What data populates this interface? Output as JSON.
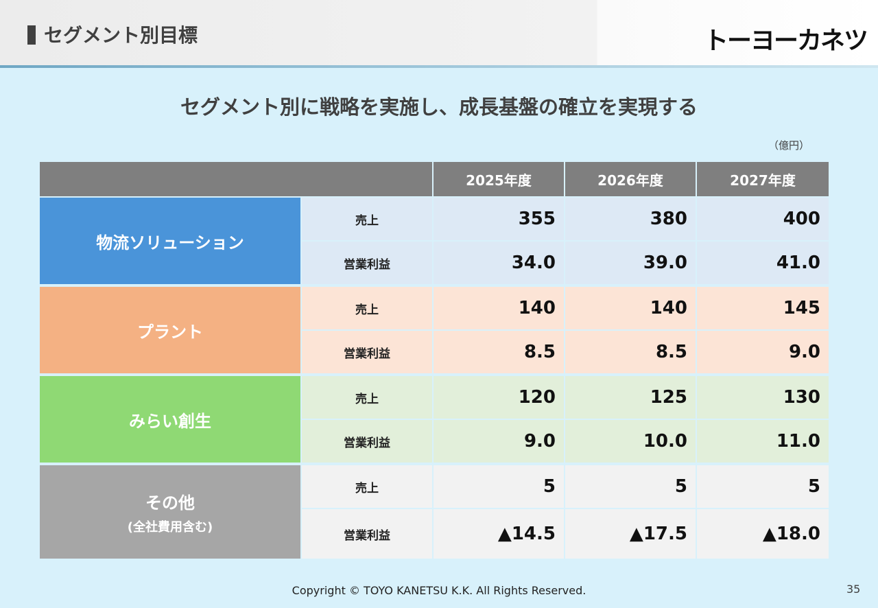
{
  "header": {
    "title": "セグメント別目標",
    "logo": "トーヨーカネツ"
  },
  "subtitle": "セグメント別に戦略を実施し、成長基盤の確立を実現する",
  "unit": "（億円）",
  "table": {
    "columns": [
      "2025年度",
      "2026年度",
      "2027年度"
    ],
    "segments": [
      {
        "name": "物流ソリューション",
        "rows": [
          {
            "metric": "売上",
            "values": [
              "355",
              "380",
              "400"
            ]
          },
          {
            "metric": "営業利益",
            "values": [
              "34.0",
              "39.0",
              "41.0"
            ]
          }
        ]
      },
      {
        "name": "プラント",
        "rows": [
          {
            "metric": "売上",
            "values": [
              "140",
              "140",
              "145"
            ]
          },
          {
            "metric": "営業利益",
            "values": [
              "8.5",
              "8.5",
              "9.0"
            ]
          }
        ]
      },
      {
        "name": "みらい創生",
        "rows": [
          {
            "metric": "売上",
            "values": [
              "120",
              "125",
              "130"
            ]
          },
          {
            "metric": "営業利益",
            "values": [
              "9.0",
              "10.0",
              "11.0"
            ]
          }
        ]
      },
      {
        "name": "その他",
        "note": "(全社費用含む)",
        "rows": [
          {
            "metric": "売上",
            "values": [
              "5",
              "5",
              "5"
            ]
          },
          {
            "metric": "営業利益",
            "values": [
              "▲14.5",
              "▲17.5",
              "▲18.0"
            ]
          }
        ]
      }
    ]
  },
  "footer": {
    "copyright": "Copyright © TOYO KANETSU K.K. All Rights Reserved.",
    "page": "35"
  }
}
